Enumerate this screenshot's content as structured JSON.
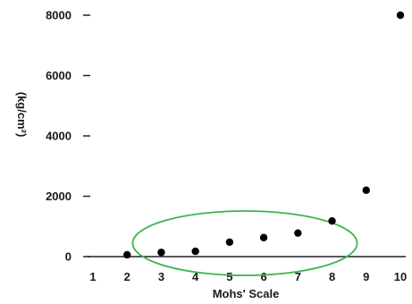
{
  "chart_data": {
    "type": "scatter",
    "title": "",
    "xlabel": "Mohs' Scale",
    "ylabel": "(kg/cm²)",
    "xlim": [
      1,
      10
    ],
    "ylim": [
      0,
      8000
    ],
    "x_ticks": [
      1,
      2,
      3,
      4,
      5,
      6,
      7,
      8,
      9,
      10
    ],
    "y_ticks": [
      0,
      2000,
      4000,
      6000,
      8000
    ],
    "grid": false,
    "series": [
      {
        "x": [
          2,
          3,
          4,
          5,
          6,
          7,
          8,
          9,
          10
        ],
        "y": [
          60,
          140,
          175,
          480,
          630,
          780,
          1180,
          2200,
          8000
        ]
      }
    ],
    "annotations": [
      {
        "type": "ellipse",
        "color": "#3cb54a",
        "encloses_x": [
          3,
          4,
          5,
          6,
          7,
          8
        ]
      }
    ],
    "colors": {
      "points": "#000000",
      "axis": "#222222",
      "ellipse": "#3cb54a"
    }
  }
}
